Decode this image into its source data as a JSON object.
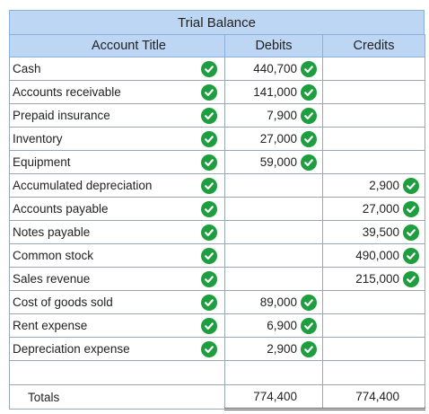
{
  "title": "Trial Balance",
  "headers": {
    "account": "Account Title",
    "debits": "Debits",
    "credits": "Credits"
  },
  "rows": [
    {
      "account": "Cash",
      "debit": "440,700",
      "credit": ""
    },
    {
      "account": "Accounts receivable",
      "debit": "141,000",
      "credit": ""
    },
    {
      "account": "Prepaid insurance",
      "debit": "7,900",
      "credit": ""
    },
    {
      "account": "Inventory",
      "debit": "27,000",
      "credit": ""
    },
    {
      "account": "Equipment",
      "debit": "59,000",
      "credit": ""
    },
    {
      "account": "Accumulated depreciation",
      "debit": "",
      "credit": "2,900"
    },
    {
      "account": "Accounts payable",
      "debit": "",
      "credit": "27,000"
    },
    {
      "account": "Notes payable",
      "debit": "",
      "credit": "39,500"
    },
    {
      "account": "Common stock",
      "debit": "",
      "credit": "490,000"
    },
    {
      "account": "Sales revenue",
      "debit": "",
      "credit": "215,000"
    },
    {
      "account": "Cost of goods sold",
      "debit": "89,000",
      "credit": ""
    },
    {
      "account": "Rent expense",
      "debit": "6,900",
      "credit": ""
    },
    {
      "account": "Depreciation expense",
      "debit": "2,900",
      "credit": ""
    }
  ],
  "totals": {
    "label": "Totals",
    "debit": "774,400",
    "credit": "774,400"
  },
  "colors": {
    "header_bg": "#bcd6f3",
    "check_green": "#1e9e3e"
  },
  "icons": {
    "correct": "check-circle-icon"
  }
}
